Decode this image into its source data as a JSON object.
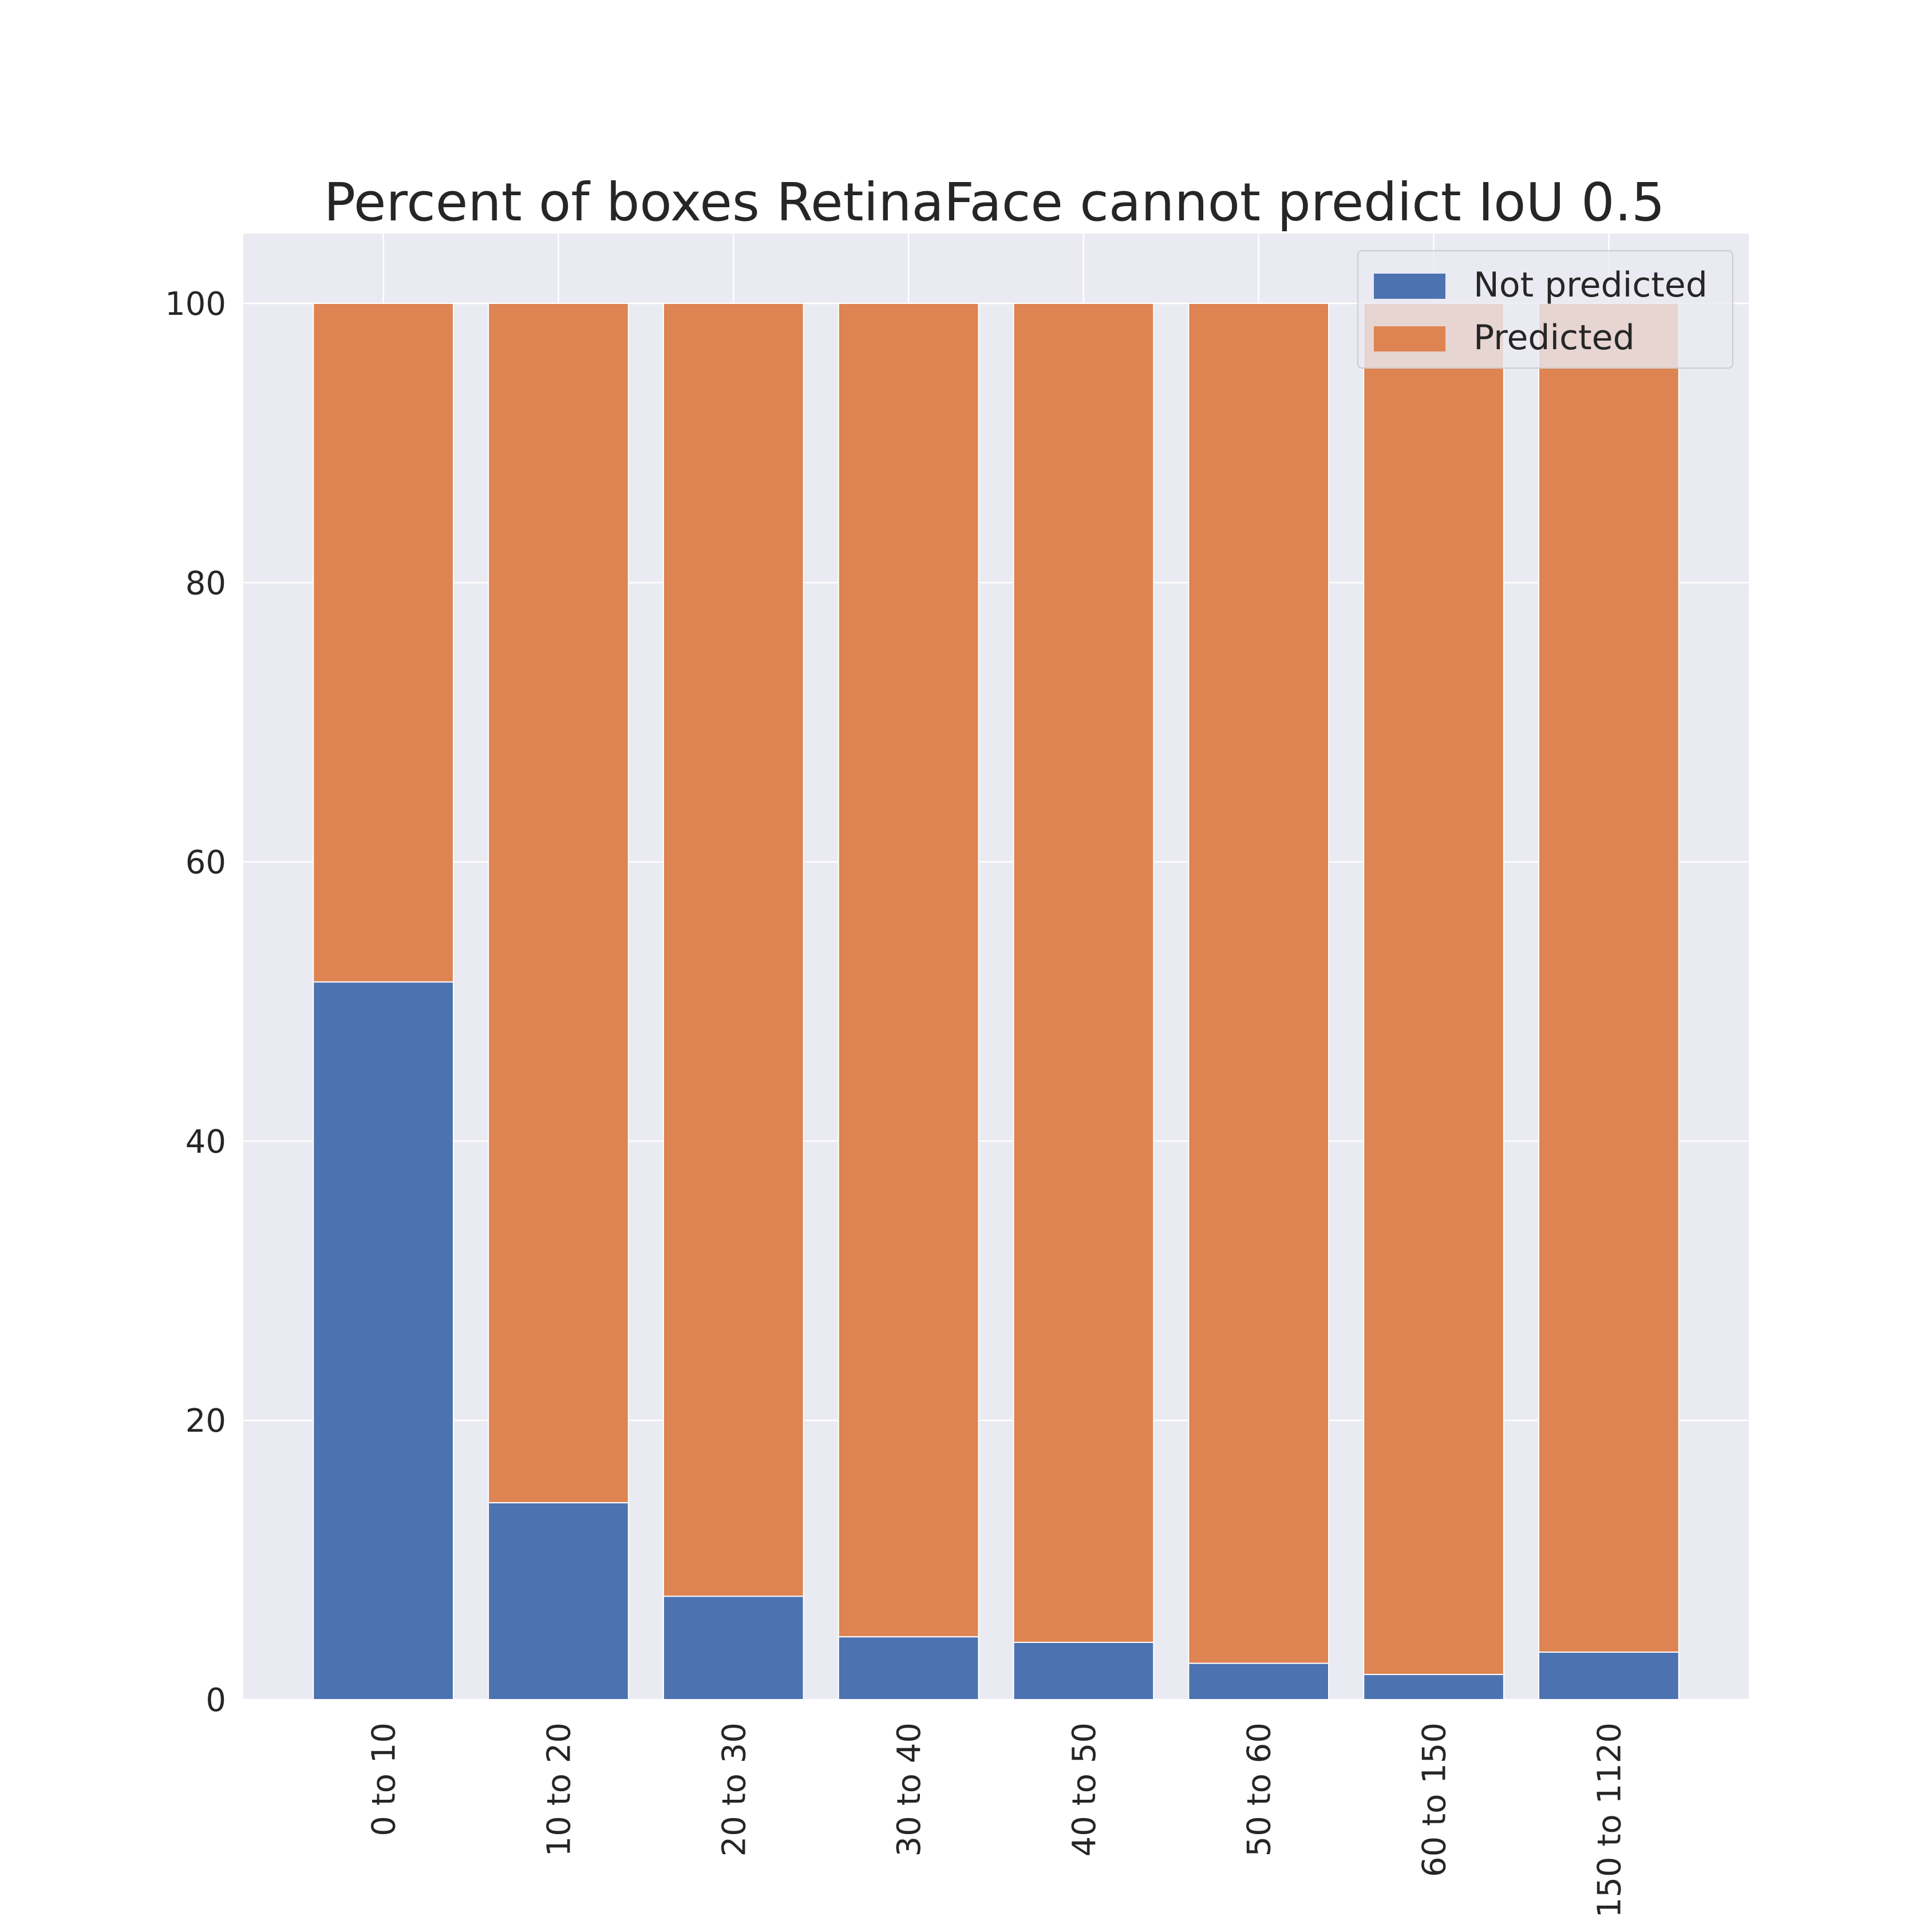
{
  "chart_data": {
    "type": "bar",
    "stacked": true,
    "title": "Percent of boxes RetinaFace cannot predict IoU 0.5",
    "xlabel": "",
    "ylabel": "",
    "categories": [
      "0 to 10",
      "10 to 20",
      "20 to 30",
      "30 to 40",
      "40 to 50",
      "50 to 60",
      "60 to 150",
      "150 to 1120"
    ],
    "series": [
      {
        "name": "Not predicted",
        "color": "#4c72b0",
        "values": [
          51.4,
          14.1,
          7.4,
          4.5,
          4.1,
          2.6,
          1.8,
          3.4
        ]
      },
      {
        "name": "Predicted",
        "color": "#dd8452",
        "values": [
          48.6,
          85.9,
          92.6,
          95.5,
          95.9,
          97.4,
          98.2,
          96.6
        ]
      }
    ],
    "ylim": [
      0,
      105
    ],
    "yticks": [
      0,
      20,
      40,
      60,
      80,
      100
    ],
    "grid": true,
    "legend": "top-right",
    "background": "#eaeaf2"
  }
}
